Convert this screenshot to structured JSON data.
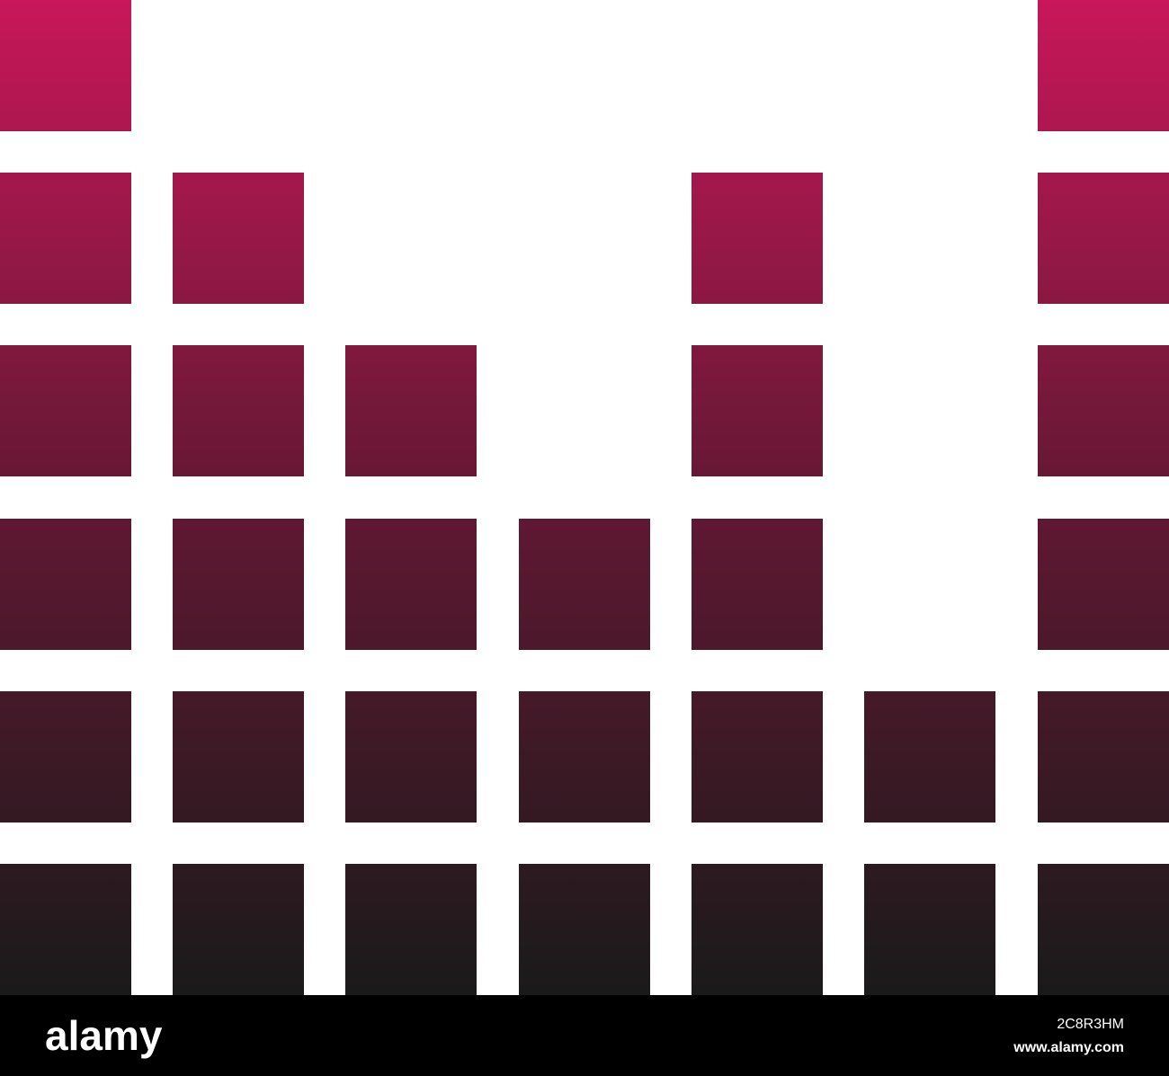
{
  "watermark": {
    "logo": "alamy",
    "image_id": "2C8R3HM",
    "url": "www.alamy.com"
  }
}
